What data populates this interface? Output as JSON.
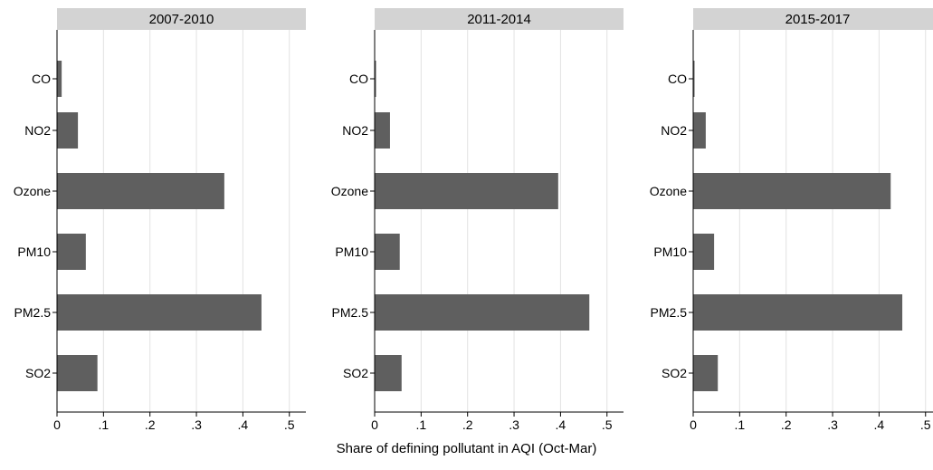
{
  "chart_data": {
    "type": "bar",
    "orientation": "horizontal",
    "categories": [
      "CO",
      "NO2",
      "Ozone",
      "PM10",
      "PM2.5",
      "SO2"
    ],
    "xlabel": "Share of defining pollutant in AQI (Oct-Mar)",
    "xlim": [
      0,
      0.52
    ],
    "xticks": [
      0,
      0.1,
      0.2,
      0.3,
      0.4,
      0.5
    ],
    "xtick_labels": [
      "0",
      ".1",
      ".2",
      ".3",
      ".4",
      ".5"
    ],
    "grid": "vertical",
    "panels": [
      {
        "title": "2007-2010",
        "values": [
          0.01,
          0.045,
          0.36,
          0.062,
          0.44,
          0.087
        ]
      },
      {
        "title": "2011-2014",
        "values": [
          0.003,
          0.033,
          0.395,
          0.054,
          0.462,
          0.058
        ]
      },
      {
        "title": "2015-2017",
        "values": [
          0.002,
          0.027,
          0.425,
          0.045,
          0.45,
          0.053
        ]
      }
    ],
    "colors": {
      "bar": "#5f5f5f",
      "strip": "#d3d3d3",
      "grid": "#e2e2e2"
    }
  }
}
